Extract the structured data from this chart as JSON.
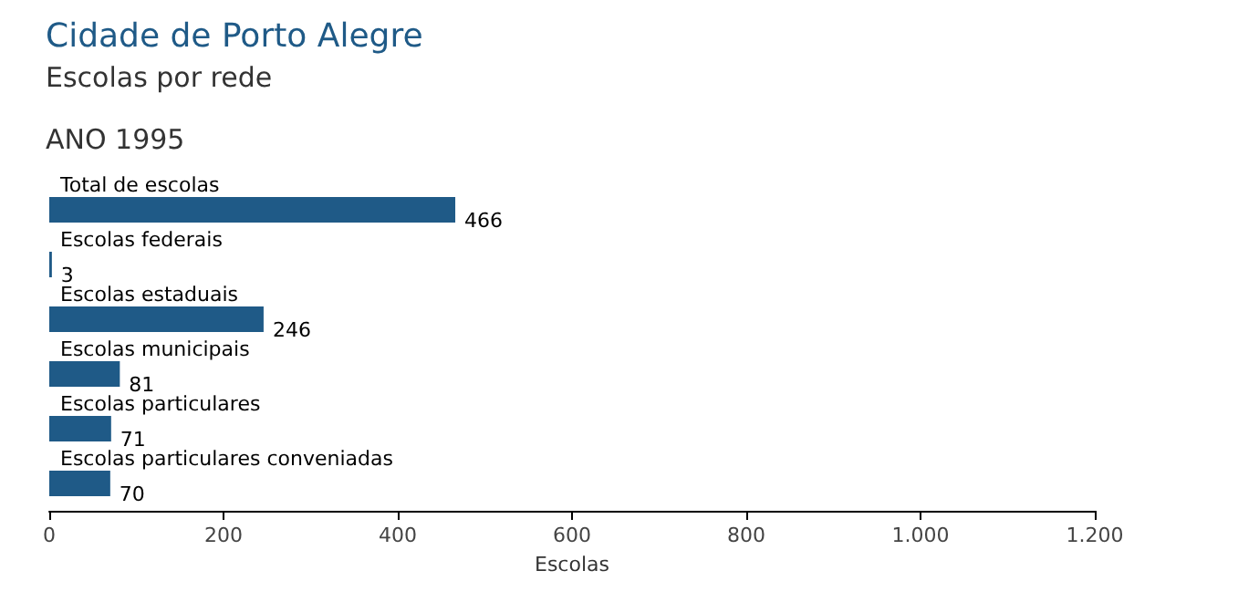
{
  "chart_data": {
    "type": "bar",
    "orientation": "horizontal",
    "title": "Cidade de Porto Alegre",
    "subtitle": "Escolas por rede",
    "annotations": [
      "ANO 1995"
    ],
    "xlabel": "Escolas",
    "categories": [
      "Total de escolas",
      "Escolas federais",
      "Escolas estaduais",
      "Escolas municipais",
      "Escolas particulares",
      "Escolas particulares conveniadas"
    ],
    "values": [
      466,
      3,
      246,
      81,
      71,
      70
    ],
    "color": "#1f5a87",
    "xlim": [
      0,
      1200
    ],
    "xticks": [
      0,
      200,
      400,
      600,
      800,
      {
        "value": 1000,
        "label": "1.000"
      },
      {
        "value": 1200,
        "label": "1.200"
      }
    ],
    "data_labels": true
  }
}
